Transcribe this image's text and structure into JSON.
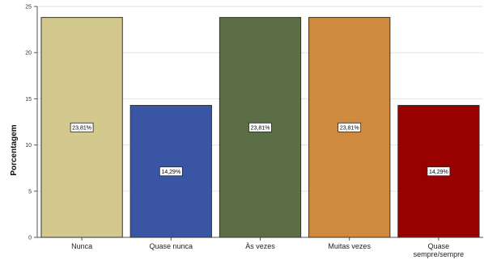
{
  "chart_data": {
    "type": "bar",
    "ylabel": "Porcentagem",
    "xlabel": "",
    "ylim": [
      0,
      25
    ],
    "yticks": [
      0,
      5,
      10,
      15,
      20,
      25
    ],
    "grid": true,
    "categories": [
      [
        "Nunca"
      ],
      [
        "Quase nunca"
      ],
      [
        "Às vezes"
      ],
      [
        "Muitas vezes"
      ],
      [
        "Quase",
        "sempre/sempre"
      ]
    ],
    "values": [
      23.81,
      14.29,
      23.81,
      23.81,
      14.29
    ],
    "data_labels": [
      "23,81%",
      "14,29%",
      "23,81%",
      "23,81%",
      "14,29%"
    ],
    "colors": [
      "#d3c98f",
      "#3a55a3",
      "#5c6e45",
      "#d08a40",
      "#990000"
    ]
  }
}
